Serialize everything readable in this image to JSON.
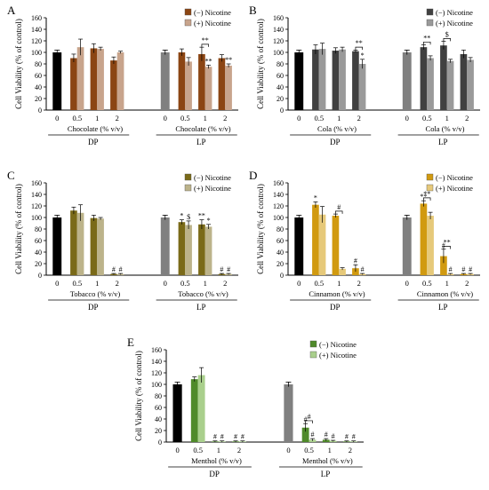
{
  "figure": {
    "ylabel": "Cell Viability (% of control)",
    "yticks": [
      "0",
      "20",
      "40",
      "60",
      "80",
      "100",
      "120",
      "140",
      "160"
    ],
    "x_ticks": [
      "0",
      "0.5",
      "1",
      "2"
    ],
    "group_labels": [
      "DP",
      "LP"
    ],
    "legend_neg": "(−) Nicotine",
    "legend_pos": "(+) Nicotine"
  },
  "chart_data": [
    {
      "panel": "A",
      "type": "bar",
      "ylim": [
        0,
        160
      ],
      "xlabel": "Chocolate (% v/v)",
      "colors": {
        "control": "#000000",
        "lp_control": "#808080",
        "neg": "#8b4513",
        "pos": "#c8a48c"
      },
      "groups": [
        {
          "label": "DP",
          "control": 100,
          "control_err": 4,
          "neg": [
            90,
            107,
            86
          ],
          "neg_err": [
            7,
            8,
            6
          ],
          "pos": [
            109,
            106,
            100
          ],
          "pos_err": [
            14,
            3,
            2
          ],
          "annotations": [
            [
              "",
              ""
            ],
            [
              "",
              ""
            ],
            [
              "",
              ""
            ]
          ]
        },
        {
          "label": "LP",
          "control": 100,
          "control_err": 4,
          "neg": [
            100,
            97,
            90
          ],
          "neg_err": [
            6,
            12,
            6
          ],
          "pos": [
            84,
            75,
            77
          ],
          "pos_err": [
            7,
            3,
            3
          ],
          "annotations": [
            [
              "",
              ""
            ],
            [
              "",
              "**"
            ],
            [
              "",
              "**"
            ]
          ]
        }
      ],
      "brackets": [
        {
          "group": 1,
          "conc": 1,
          "label": "**"
        }
      ]
    },
    {
      "panel": "B",
      "type": "bar",
      "ylim": [
        0,
        160
      ],
      "xlabel": "Cola (% v/v)",
      "colors": {
        "control": "#000000",
        "lp_control": "#808080",
        "neg": "#404040",
        "pos": "#9a9a9a"
      },
      "groups": [
        {
          "label": "DP",
          "control": 100,
          "control_err": 4,
          "neg": [
            105,
            103,
            102
          ],
          "neg_err": [
            8,
            5,
            2
          ],
          "pos": [
            106,
            105,
            80
          ],
          "pos_err": [
            10,
            4,
            8
          ],
          "annotations": [
            [
              "",
              ""
            ],
            [
              "",
              ""
            ],
            [
              "",
              "*"
            ]
          ]
        },
        {
          "label": "LP",
          "control": 100,
          "control_err": 4,
          "neg": [
            109,
            112,
            97
          ],
          "neg_err": [
            4,
            7,
            7
          ],
          "pos": [
            90,
            85,
            87
          ],
          "pos_err": [
            4,
            3,
            4
          ],
          "annotations": [
            [
              "",
              ""
            ],
            [
              "",
              ""
            ],
            [
              "",
              ""
            ]
          ]
        }
      ],
      "brackets": [
        {
          "group": 0,
          "conc": 2,
          "label": "**"
        },
        {
          "group": 1,
          "conc": 0,
          "label": "**"
        },
        {
          "group": 1,
          "conc": 1,
          "label": "$"
        }
      ]
    },
    {
      "panel": "C",
      "type": "bar",
      "ylim": [
        0,
        160
      ],
      "xlabel": "Tobacco (% v/v)",
      "colors": {
        "control": "#000000",
        "lp_control": "#808080",
        "neg": "#7a6a18",
        "pos": "#bcb38a"
      },
      "groups": [
        {
          "label": "DP",
          "control": 100,
          "control_err": 4,
          "neg": [
            112,
            99,
            2
          ],
          "neg_err": [
            6,
            5,
            1
          ],
          "pos": [
            108,
            98,
            2
          ],
          "pos_err": [
            14,
            2,
            1
          ],
          "annotations": [
            [
              "",
              ""
            ],
            [
              "",
              ""
            ],
            [
              "#",
              "#"
            ]
          ]
        },
        {
          "label": "LP",
          "control": 100,
          "control_err": 4,
          "neg": [
            92,
            88,
            2
          ],
          "neg_err": [
            4,
            8,
            1
          ],
          "pos": [
            87,
            84,
            2
          ],
          "pos_err": [
            7,
            4,
            1
          ],
          "annotations": [
            [
              "*",
              "$"
            ],
            [
              "**",
              "*"
            ],
            [
              "#",
              "#"
            ]
          ]
        }
      ],
      "brackets": []
    },
    {
      "panel": "D",
      "type": "bar",
      "ylim": [
        0,
        160
      ],
      "xlabel": "Cinnamon (% v/v)",
      "colors": {
        "control": "#000000",
        "lp_control": "#808080",
        "neg": "#d19a10",
        "pos": "#e6c97a"
      },
      "groups": [
        {
          "label": "DP",
          "control": 100,
          "control_err": 4,
          "neg": [
            122,
            103,
            12
          ],
          "neg_err": [
            5,
            3,
            6
          ],
          "pos": [
            105,
            11,
            2
          ],
          "pos_err": [
            14,
            2,
            1
          ],
          "annotations": [
            [
              "*",
              ""
            ],
            [
              "",
              ""
            ],
            [
              "#",
              "#"
            ]
          ]
        },
        {
          "label": "LP",
          "control": 100,
          "control_err": 4,
          "neg": [
            124,
            33,
            2
          ],
          "neg_err": [
            5,
            12,
            1
          ],
          "pos": [
            103,
            2,
            2
          ],
          "pos_err": [
            6,
            1,
            1
          ],
          "annotations": [
            [
              "**",
              ""
            ],
            [
              "#",
              "#"
            ],
            [
              "#",
              "#"
            ]
          ]
        }
      ],
      "brackets": [
        {
          "group": 0,
          "conc": 1,
          "label": "#"
        },
        {
          "group": 1,
          "conc": 0,
          "label": "**"
        },
        {
          "group": 1,
          "conc": 1,
          "label": "**"
        }
      ]
    },
    {
      "panel": "E",
      "type": "bar",
      "ylim": [
        0,
        160
      ],
      "xlabel": "Menthol (% v/v)",
      "colors": {
        "control": "#000000",
        "lp_control": "#808080",
        "neg": "#4f8a2a",
        "pos": "#a9cf8c"
      },
      "groups": [
        {
          "label": "DP",
          "control": 100,
          "control_err": 4,
          "neg": [
            109,
            1,
            1
          ],
          "neg_err": [
            4,
            1,
            1
          ],
          "pos": [
            116,
            1,
            1
          ],
          "pos_err": [
            13,
            1,
            1
          ],
          "annotations": [
            [
              "",
              ""
            ],
            [
              "#",
              "#"
            ],
            [
              "#",
              "#"
            ]
          ]
        },
        {
          "label": "LP",
          "control": 100,
          "control_err": 4,
          "neg": [
            25,
            4,
            1
          ],
          "neg_err": [
            7,
            2,
            1
          ],
          "pos": [
            4,
            2,
            1
          ],
          "pos_err": [
            2,
            1,
            1
          ],
          "annotations": [
            [
              "#",
              "#"
            ],
            [
              "#",
              "#"
            ],
            [
              "#",
              "#"
            ]
          ]
        }
      ],
      "brackets": [
        {
          "group": 1,
          "conc": 0,
          "label": "#"
        }
      ]
    }
  ]
}
